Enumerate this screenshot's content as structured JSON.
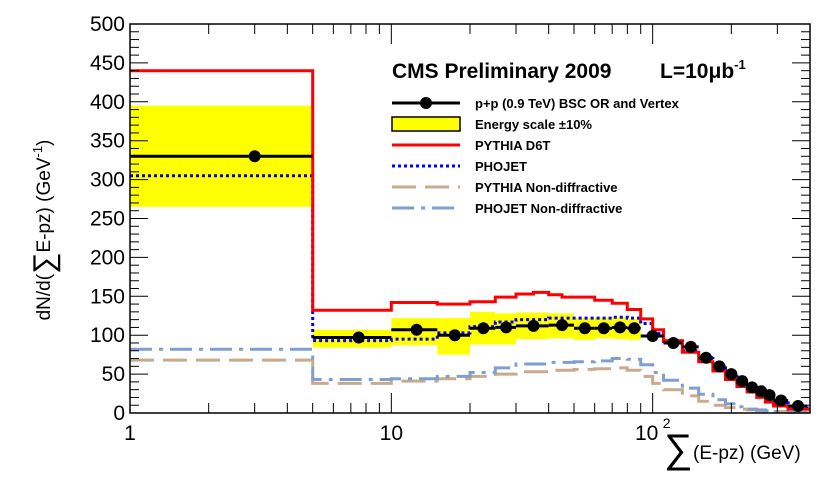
{
  "chart_data": {
    "type": "line",
    "title": "CMS Preliminary 2009",
    "lumi_prefix": "L=10",
    "lumi_mu": "μ",
    "lumi_b": "b",
    "lumi_exp": "-1",
    "xlabel_sum": "∑",
    "xlabel": "(E-pz) (GeV)",
    "ylabel_pre": "dN/d(",
    "ylabel_sum": "∑",
    "ylabel_post": "E-pz) (GeV",
    "ylabel_exp": "-1",
    "ylabel_close": ")",
    "xscale": "log",
    "xlim": [
      1,
      400
    ],
    "ylim": [
      0,
      500
    ],
    "yticks": [
      "0",
      "50",
      "100",
      "150",
      "200",
      "250",
      "300",
      "350",
      "400",
      "450",
      "500"
    ],
    "ytick_values": [
      0,
      50,
      100,
      150,
      200,
      250,
      300,
      350,
      400,
      450,
      500
    ],
    "xticks": [
      {
        "value": 1,
        "label": "1"
      },
      {
        "value": 10,
        "label": "10"
      },
      {
        "value": 100,
        "label": "10",
        "exp": "2"
      }
    ],
    "legend_position": "top-right",
    "colors": {
      "data": "#000000",
      "band_fill": "#ffff00",
      "pythia_d6t": "#ff0000",
      "phojet": "#0000ff",
      "pythia_nd": "#c8aa8c",
      "phojet_nd": "#7f9fd0"
    },
    "legend": [
      {
        "key": "data",
        "label": "p+p (0.9 TeV) BSC OR and Vertex",
        "style": "marker"
      },
      {
        "key": "band",
        "label": "Energy scale ±10%",
        "style": "box"
      },
      {
        "key": "pythia_d6t",
        "label": "PYTHIA D6T",
        "style": "solid"
      },
      {
        "key": "phojet",
        "label": "PHOJET",
        "style": "dotted"
      },
      {
        "key": "pythia_nd",
        "label": "PYTHIA Non-diffractive",
        "style": "dashed"
      },
      {
        "key": "phojet_nd",
        "label": "PHOJET Non-diffractive",
        "style": "dashdot"
      }
    ],
    "data_points": [
      {
        "x": 3,
        "y": 330,
        "xlo": 1,
        "xhi": 5
      },
      {
        "x": 7.5,
        "y": 97,
        "xlo": 5,
        "xhi": 10
      },
      {
        "x": 12.5,
        "y": 107,
        "xlo": 10,
        "xhi": 15
      },
      {
        "x": 17.5,
        "y": 100,
        "xlo": 15,
        "xhi": 20
      },
      {
        "x": 22.5,
        "y": 109,
        "xlo": 20,
        "xhi": 25
      },
      {
        "x": 27.5,
        "y": 110,
        "xlo": 25,
        "xhi": 30
      },
      {
        "x": 35,
        "y": 112,
        "xlo": 30,
        "xhi": 40
      },
      {
        "x": 45,
        "y": 113,
        "xlo": 40,
        "xhi": 50
      },
      {
        "x": 55,
        "y": 109,
        "xlo": 50,
        "xhi": 60
      },
      {
        "x": 65,
        "y": 109,
        "xlo": 60,
        "xhi": 70
      },
      {
        "x": 75,
        "y": 110,
        "xlo": 70,
        "xhi": 80
      },
      {
        "x": 85,
        "y": 109,
        "xlo": 80,
        "xhi": 90
      },
      {
        "x": 100,
        "y": 99,
        "xlo": 90,
        "xhi": 110
      },
      {
        "x": 120,
        "y": 90,
        "xlo": 110,
        "xhi": 130
      },
      {
        "x": 140,
        "y": 85,
        "xlo": 130,
        "xhi": 150
      },
      {
        "x": 160,
        "y": 71,
        "xlo": 150,
        "xhi": 170
      },
      {
        "x": 180,
        "y": 60,
        "xlo": 170,
        "xhi": 190
      },
      {
        "x": 200,
        "y": 50,
        "xlo": 190,
        "xhi": 210
      },
      {
        "x": 220,
        "y": 41,
        "xlo": 210,
        "xhi": 230
      },
      {
        "x": 240,
        "y": 33,
        "xlo": 230,
        "xhi": 250
      },
      {
        "x": 260,
        "y": 28,
        "xlo": 250,
        "xhi": 270
      },
      {
        "x": 280,
        "y": 23,
        "xlo": 270,
        "xhi": 290
      },
      {
        "x": 310,
        "y": 16,
        "xlo": 290,
        "xhi": 330
      },
      {
        "x": 360,
        "y": 9,
        "xlo": 330,
        "xhi": 390
      }
    ],
    "energy_scale_band": [
      {
        "xlo": 1,
        "xhi": 5,
        "ylo": 265,
        "yhi": 395
      },
      {
        "xlo": 5,
        "xhi": 10,
        "ylo": 84,
        "yhi": 107
      },
      {
        "xlo": 10,
        "xhi": 15,
        "ylo": 87,
        "yhi": 122
      },
      {
        "xlo": 15,
        "xhi": 20,
        "ylo": 75,
        "yhi": 122
      },
      {
        "xlo": 20,
        "xhi": 25,
        "ylo": 88,
        "yhi": 130
      },
      {
        "xlo": 25,
        "xhi": 30,
        "ylo": 88,
        "yhi": 128
      },
      {
        "xlo": 30,
        "xhi": 40,
        "ylo": 95,
        "yhi": 129
      },
      {
        "xlo": 40,
        "xhi": 50,
        "ylo": 96,
        "yhi": 128
      },
      {
        "xlo": 50,
        "xhi": 60,
        "ylo": 94,
        "yhi": 122
      },
      {
        "xlo": 60,
        "xhi": 70,
        "ylo": 96,
        "yhi": 123
      },
      {
        "xlo": 70,
        "xhi": 80,
        "ylo": 95,
        "yhi": 123
      },
      {
        "xlo": 80,
        "xhi": 90,
        "ylo": 94,
        "yhi": 121
      }
    ],
    "series": [
      {
        "key": "pythia_d6t",
        "name": "PYTHIA D6T",
        "edges": [
          1,
          5,
          10,
          15,
          20,
          25,
          30,
          35,
          40,
          45,
          50,
          60,
          70,
          80,
          90,
          100,
          110,
          130,
          150,
          170,
          190,
          210,
          230,
          250,
          270,
          290,
          330,
          400
        ],
        "values": [
          440,
          132,
          142,
          140,
          143,
          149,
          153,
          155,
          152,
          149,
          149,
          145,
          141,
          133,
          121,
          107,
          93,
          78,
          66,
          54,
          43,
          34,
          27,
          20,
          14,
          9,
          5
        ]
      },
      {
        "key": "phojet",
        "name": "PHOJET",
        "edges": [
          1,
          5,
          10,
          15,
          20,
          25,
          30,
          40,
          50,
          60,
          70,
          80,
          90,
          100,
          110,
          130,
          150,
          170,
          190,
          210,
          230,
          250,
          270,
          290,
          330,
          400
        ],
        "values": [
          305,
          93,
          95,
          103,
          111,
          117,
          120,
          122,
          122,
          122,
          123,
          122,
          115,
          102,
          92,
          80,
          70,
          58,
          47,
          37,
          29,
          23,
          18,
          13,
          7
        ]
      },
      {
        "key": "pythia_nd",
        "name": "PYTHIA Non-diffractive",
        "edges": [
          1,
          5,
          10,
          15,
          20,
          25,
          30,
          40,
          50,
          60,
          70,
          80,
          90,
          100,
          110,
          130,
          150,
          170,
          190,
          210,
          230,
          250,
          270,
          290,
          330,
          400
        ],
        "values": [
          68,
          38,
          41,
          44,
          47,
          50,
          53,
          55,
          56,
          57,
          58,
          55,
          47,
          38,
          30,
          22,
          15,
          10,
          7,
          5,
          4,
          3,
          2,
          2,
          1
        ]
      },
      {
        "key": "phojet_nd",
        "name": "PHOJET Non-diffractive",
        "edges": [
          1,
          5,
          10,
          15,
          20,
          25,
          30,
          40,
          50,
          60,
          70,
          80,
          90,
          100,
          110,
          130,
          150,
          170,
          190,
          210,
          230,
          250,
          270,
          290,
          330,
          400
        ],
        "values": [
          82,
          43,
          44,
          47,
          52,
          58,
          63,
          65,
          66,
          67,
          70,
          69,
          62,
          52,
          42,
          32,
          24,
          17,
          12,
          8,
          5,
          4,
          3,
          2,
          1
        ]
      }
    ]
  }
}
